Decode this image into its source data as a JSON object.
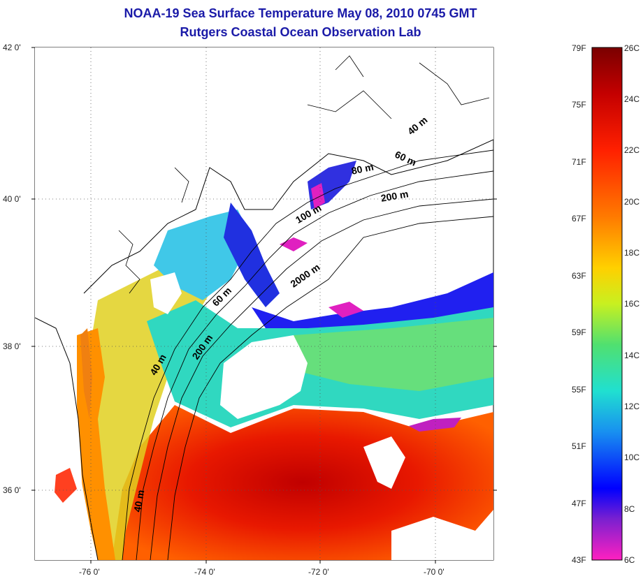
{
  "title": {
    "line1": "NOAA-19 Sea Surface Temperature May 08, 2010 0745 GMT",
    "line2": "Rutgers Coastal Ocean Observation Lab"
  },
  "axes": {
    "lat_labels": [
      "42 0'",
      "40 0'",
      "38 0'",
      "36 0'"
    ],
    "lon_labels": [
      "-76 0'",
      "-74 0'",
      "-72 0'",
      "-70 0'"
    ]
  },
  "contours": {
    "labels": [
      "40 m",
      "60 m",
      "80 m",
      "200 m",
      "100 m",
      "2000 m",
      "60 m",
      "200 m",
      "40 m",
      "40 m"
    ]
  },
  "colorbar": {
    "fahrenheit": [
      "79F",
      "75F",
      "71F",
      "67F",
      "63F",
      "59F",
      "55F",
      "51F",
      "47F",
      "43F"
    ],
    "celsius": [
      "26C",
      "24C",
      "22C",
      "20C",
      "18C",
      "16C",
      "14C",
      "12C",
      "10C",
      "8C",
      "6C"
    ],
    "gradient_colors": [
      "#7a0000",
      "#c40000",
      "#ff2000",
      "#ff7a00",
      "#ffd000",
      "#c8f020",
      "#50e070",
      "#20e0d0",
      "#1890f0",
      "#0000ff",
      "#7a20d0",
      "#ff20c0"
    ]
  },
  "palette": {
    "land": "#ffffff",
    "cloud": "#ffffff",
    "title_color": "#1a1aa8"
  }
}
